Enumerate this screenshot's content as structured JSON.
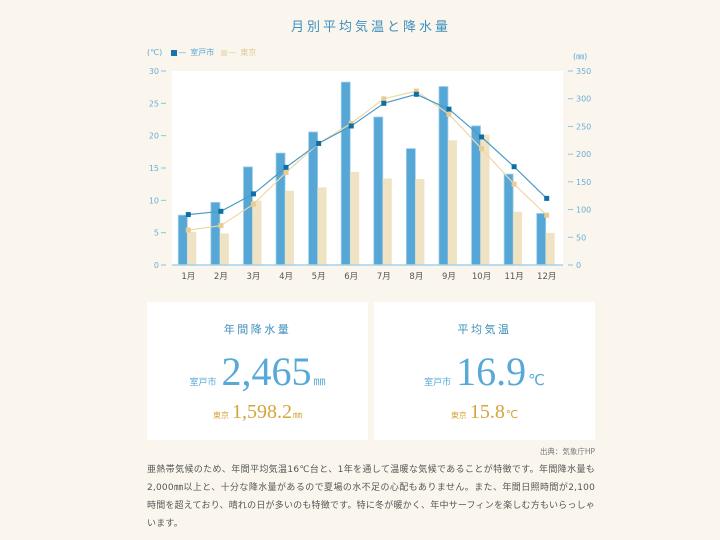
{
  "chart": {
    "title": "月別平均気温と降水量",
    "left_unit": "(℃)",
    "right_unit": "(㎜)",
    "legend": [
      {
        "marker": "■",
        "dash": "—",
        "label": "室戸市",
        "color": "#1a74a8"
      },
      {
        "marker": "■",
        "dash": "—",
        "label": "東京",
        "color": "#efe2c2"
      }
    ]
  },
  "chart_data": {
    "type": "bar",
    "title": "月別平均気温と降水量",
    "categories": [
      "1月",
      "2月",
      "3月",
      "4月",
      "5月",
      "6月",
      "7月",
      "8月",
      "9月",
      "10月",
      "11月",
      "12月"
    ],
    "series": [
      {
        "name": "室戸市",
        "metric": "降水量",
        "type": "bar",
        "axis": "right",
        "unit": "㎜",
        "color": "#56a6d6",
        "values": [
          90,
          113,
          177,
          202,
          240,
          330,
          267,
          210,
          322,
          251,
          164,
          93
        ]
      },
      {
        "name": "東京",
        "metric": "降水量",
        "type": "bar",
        "axis": "right",
        "unit": "㎜",
        "color": "#efe3c4",
        "values": [
          60,
          57,
          116,
          134,
          140,
          168,
          156,
          155,
          225,
          235,
          96,
          58
        ]
      },
      {
        "name": "室戸市",
        "metric": "平均気温",
        "type": "line",
        "axis": "left",
        "unit": "℃",
        "color": "#4a9ccb",
        "marker_color": "#0f6fa3",
        "values": [
          7.8,
          8.3,
          11.0,
          15.1,
          18.8,
          21.5,
          25.0,
          26.4,
          24.1,
          19.8,
          15.2,
          10.3
        ]
      },
      {
        "name": "東京",
        "metric": "平均気温",
        "type": "line",
        "axis": "left",
        "unit": "℃",
        "color": "#f0d8a6",
        "marker_color": "#e8cc92",
        "values": [
          5.4,
          6.1,
          9.4,
          14.3,
          18.8,
          21.9,
          25.7,
          26.9,
          23.3,
          18.0,
          12.5,
          7.7
        ]
      }
    ],
    "xlabel": "",
    "ylabel_left": "(℃)",
    "ylim_left": [
      0,
      30
    ],
    "yticks_left": [
      0,
      5,
      10,
      15,
      20,
      25,
      30
    ],
    "ylabel_right": "(㎜)",
    "ylim_right": [
      0,
      350
    ],
    "yticks_right": [
      0,
      50,
      100,
      150,
      200,
      250,
      300,
      350
    ],
    "legend": [
      "室戸市",
      "東京"
    ],
    "legend_position": "top-left",
    "grid": false
  },
  "stats": [
    {
      "title": "年間降水量",
      "primary": {
        "label": "室戸市",
        "value": "2,465",
        "unit": "㎜"
      },
      "secondary": {
        "label": "東京",
        "value": "1,598.2",
        "unit": "㎜"
      }
    },
    {
      "title": "平均気温",
      "primary": {
        "label": "室戸市",
        "value": "16.9",
        "unit": "℃"
      },
      "secondary": {
        "label": "東京",
        "value": "15.8",
        "unit": "℃"
      }
    }
  ],
  "colors": {
    "background": "#faf6ee",
    "title_blue": "#3d8fbd",
    "muroto_blue": "#57a9d8",
    "tokyo_gold": "#d5a53c"
  },
  "source": "出典：気象庁HP",
  "description": "亜熱帯気候のため、年間平均気温16℃台と、1年を通して温暖な気候であることが特徴です。年間降水量も2,000㎜以上と、十分な降水量があるので夏場の水不足の心配もありません。また、年間日照時間が2,100時間を超えており、晴れの日が多いのも特徴です。特に冬が暖かく、年中サーフィンを楽しむ方もいらっしゃいます。"
}
